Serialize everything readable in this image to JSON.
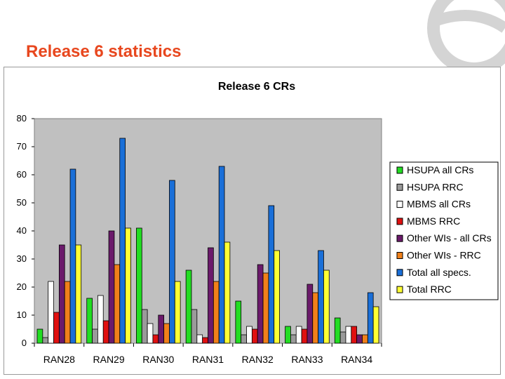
{
  "slide": {
    "title": "Release 6 statistics"
  },
  "colors": {
    "title": "#e8471e",
    "plot_background": "#c0c0c0",
    "logo": "#d4d4d4"
  },
  "chart_data": {
    "type": "bar",
    "title": "Release 6 CRs",
    "xlabel": "",
    "ylabel": "",
    "ylim": [
      0,
      80
    ],
    "yticks": [
      0,
      10,
      20,
      30,
      40,
      50,
      60,
      70,
      80
    ],
    "grid": false,
    "legend_position": "right",
    "categories": [
      "RAN28",
      "RAN29",
      "RAN30",
      "RAN31",
      "RAN32",
      "RAN33",
      "RAN34"
    ],
    "series": [
      {
        "name": "HSUPA all CRs",
        "color": "#22dd22",
        "values": [
          5,
          16,
          41,
          26,
          15,
          6,
          9
        ]
      },
      {
        "name": "HSUPA RRC",
        "color": "#9a9a9a",
        "values": [
          2,
          5,
          12,
          12,
          3,
          3,
          4
        ]
      },
      {
        "name": "MBMS all CRs",
        "color": "#ffffff",
        "values": [
          22,
          17,
          7,
          3,
          6,
          6,
          6
        ]
      },
      {
        "name": "MBMS RRC",
        "color": "#e01010",
        "values": [
          11,
          8,
          3,
          2,
          5,
          5,
          6
        ]
      },
      {
        "name": "Other WIs - all CRs",
        "color": "#6b1a6b",
        "values": [
          35,
          40,
          10,
          34,
          28,
          21,
          3
        ]
      },
      {
        "name": "Other WIs - RRC",
        "color": "#f0801a",
        "values": [
          22,
          28,
          7,
          22,
          25,
          18,
          3
        ]
      },
      {
        "name": "Total all specs.",
        "color": "#1a6fd8",
        "values": [
          62,
          73,
          58,
          63,
          49,
          33,
          18
        ]
      },
      {
        "name": "Total RRC",
        "color": "#ffff33",
        "values": [
          35,
          41,
          22,
          36,
          33,
          26,
          13
        ]
      }
    ]
  }
}
